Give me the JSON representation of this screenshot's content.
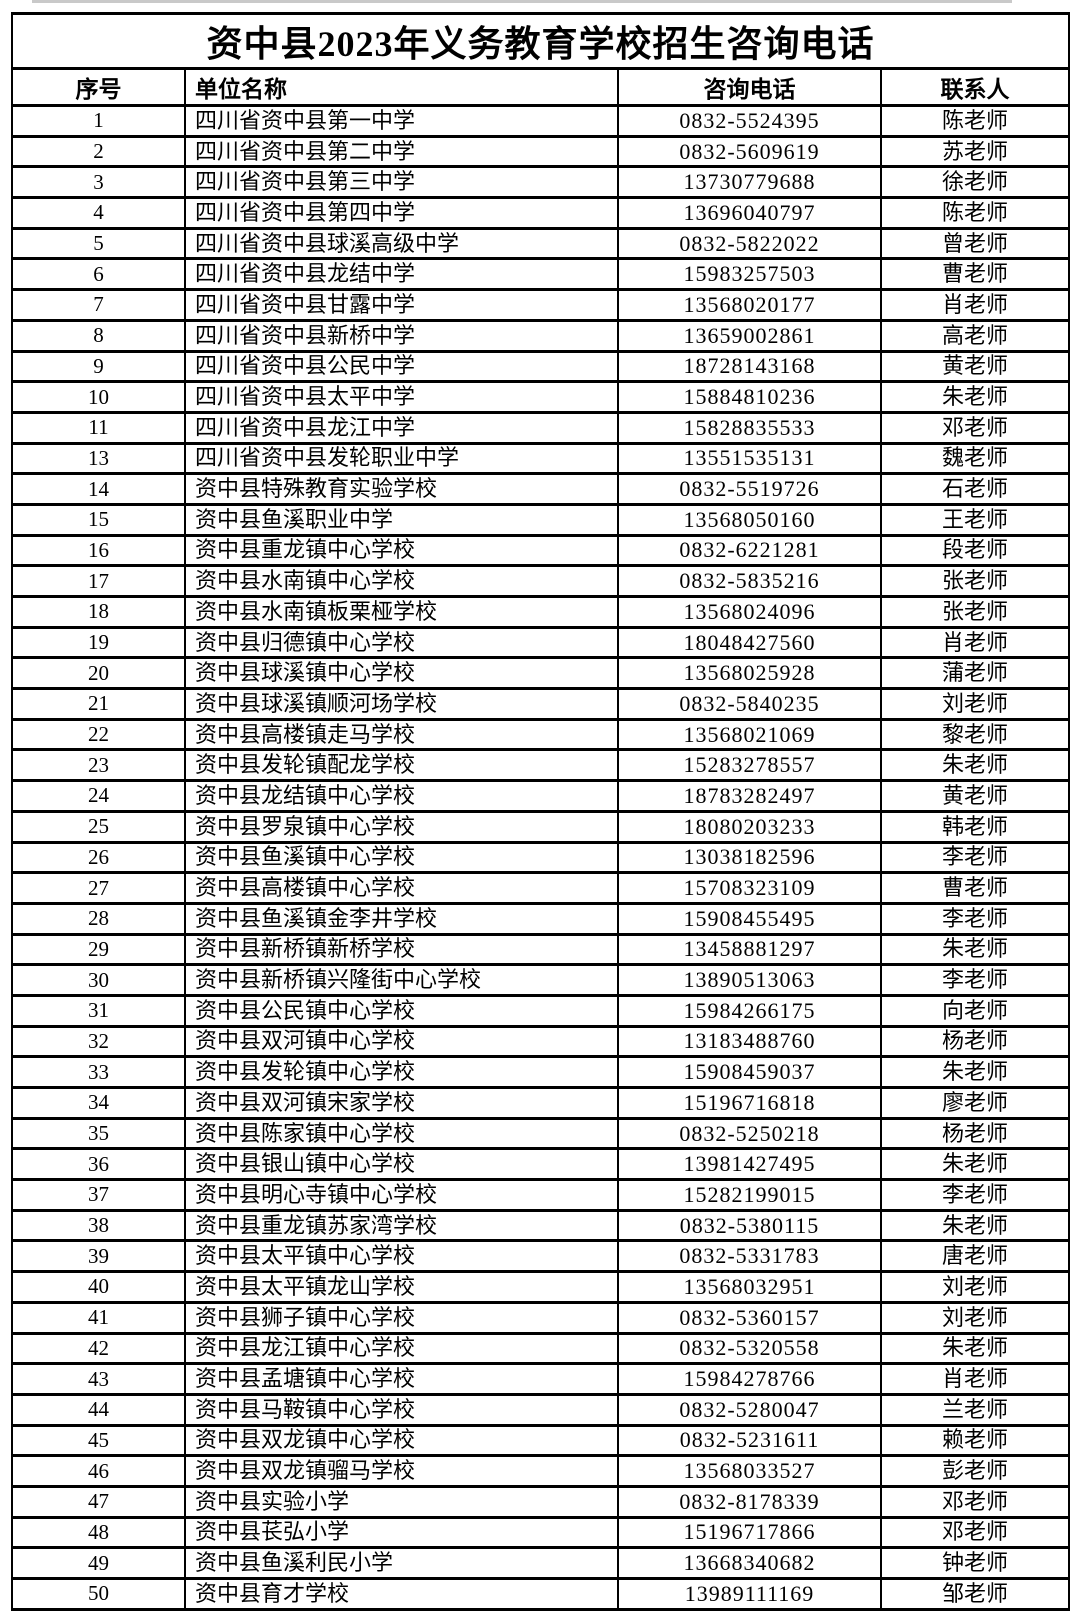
{
  "title": "资中县2023年义务教育学校招生咨询电话",
  "table": {
    "headers": [
      "序号",
      "单位名称",
      "咨询电话",
      "联系人"
    ],
    "column_names": [
      "row-number",
      "school-name",
      "phone-number",
      "contact-person"
    ],
    "rows": [
      [
        "1",
        "四川省资中县第一中学",
        "0832-5524395",
        "陈老师"
      ],
      [
        "2",
        "四川省资中县第二中学",
        "0832-5609619",
        "苏老师"
      ],
      [
        "3",
        "四川省资中县第三中学",
        "13730779688",
        "徐老师"
      ],
      [
        "4",
        "四川省资中县第四中学",
        "13696040797",
        "陈老师"
      ],
      [
        "5",
        "四川省资中县球溪高级中学",
        "0832-5822022",
        "曾老师"
      ],
      [
        "6",
        "四川省资中县龙结中学",
        "15983257503",
        "曹老师"
      ],
      [
        "7",
        "四川省资中县甘露中学",
        "13568020177",
        "肖老师"
      ],
      [
        "8",
        "四川省资中县新桥中学",
        "13659002861",
        "高老师"
      ],
      [
        "9",
        "四川省资中县公民中学",
        "18728143168",
        "黄老师"
      ],
      [
        "10",
        "四川省资中县太平中学",
        "15884810236",
        "朱老师"
      ],
      [
        "11",
        "四川省资中县龙江中学",
        "15828835533",
        "邓老师"
      ],
      [
        "13",
        "四川省资中县发轮职业中学",
        "13551535131",
        "魏老师"
      ],
      [
        "14",
        "资中县特殊教育实验学校",
        "0832-5519726",
        "石老师"
      ],
      [
        "15",
        "资中县鱼溪职业中学",
        "13568050160",
        "王老师"
      ],
      [
        "16",
        "资中县重龙镇中心学校",
        "0832-6221281",
        "段老师"
      ],
      [
        "17",
        "资中县水南镇中心学校",
        "0832-5835216",
        "张老师"
      ],
      [
        "18",
        "资中县水南镇板栗桠学校",
        "13568024096",
        "张老师"
      ],
      [
        "19",
        "资中县归德镇中心学校",
        "18048427560",
        "肖老师"
      ],
      [
        "20",
        "资中县球溪镇中心学校",
        "13568025928",
        "蒲老师"
      ],
      [
        "21",
        "资中县球溪镇顺河场学校",
        "0832-5840235",
        "刘老师"
      ],
      [
        "22",
        "资中县高楼镇走马学校",
        "13568021069",
        "黎老师"
      ],
      [
        "23",
        "资中县发轮镇配龙学校",
        "15283278557",
        "朱老师"
      ],
      [
        "24",
        "资中县龙结镇中心学校",
        "18783282497",
        "黄老师"
      ],
      [
        "25",
        "资中县罗泉镇中心学校",
        "18080203233",
        "韩老师"
      ],
      [
        "26",
        "资中县鱼溪镇中心学校",
        "13038182596",
        "李老师"
      ],
      [
        "27",
        "资中县高楼镇中心学校",
        "15708323109",
        "曹老师"
      ],
      [
        "28",
        "资中县鱼溪镇金李井学校",
        "15908455495",
        "李老师"
      ],
      [
        "29",
        "资中县新桥镇新桥学校",
        "13458881297",
        "朱老师"
      ],
      [
        "30",
        "资中县新桥镇兴隆街中心学校",
        "13890513063",
        "李老师"
      ],
      [
        "31",
        "资中县公民镇中心学校",
        "15984266175",
        "向老师"
      ],
      [
        "32",
        "资中县双河镇中心学校",
        "13183488760",
        "杨老师"
      ],
      [
        "33",
        "资中县发轮镇中心学校",
        "15908459037",
        "朱老师"
      ],
      [
        "34",
        "资中县双河镇宋家学校",
        "15196716818",
        "廖老师"
      ],
      [
        "35",
        "资中县陈家镇中心学校",
        "0832-5250218",
        "杨老师"
      ],
      [
        "36",
        "资中县银山镇中心学校",
        "13981427495",
        "朱老师"
      ],
      [
        "37",
        "资中县明心寺镇中心学校",
        "15282199015",
        "李老师"
      ],
      [
        "38",
        "资中县重龙镇苏家湾学校",
        "0832-5380115",
        "朱老师"
      ],
      [
        "39",
        "资中县太平镇中心学校",
        "0832-5331783",
        "唐老师"
      ],
      [
        "40",
        "资中县太平镇龙山学校",
        "13568032951",
        "刘老师"
      ],
      [
        "41",
        "资中县狮子镇中心学校",
        "0832-5360157",
        "刘老师"
      ],
      [
        "42",
        "资中县龙江镇中心学校",
        "0832-5320558",
        "朱老师"
      ],
      [
        "43",
        "资中县孟塘镇中心学校",
        "15984278766",
        "肖老师"
      ],
      [
        "44",
        "资中县马鞍镇中心学校",
        "0832-5280047",
        "兰老师"
      ],
      [
        "45",
        "资中县双龙镇中心学校",
        "0832-5231611",
        "赖老师"
      ],
      [
        "46",
        "资中县双龙镇骝马学校",
        "13568033527",
        "彭老师"
      ],
      [
        "47",
        "资中县实验小学",
        "0832-8178339",
        "邓老师"
      ],
      [
        "48",
        "资中县苌弘小学",
        "15196717866",
        "邓老师"
      ],
      [
        "49",
        "资中县鱼溪利民小学",
        "13668340682",
        "钟老师"
      ],
      [
        "50",
        "资中县育才学校",
        "13989111169",
        "邹老师"
      ]
    ]
  }
}
